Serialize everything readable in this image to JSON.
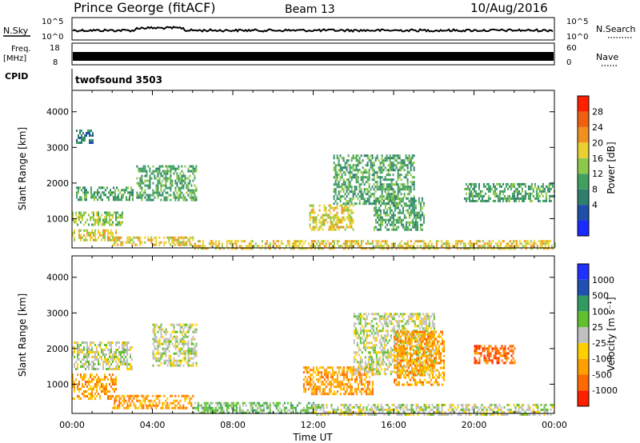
{
  "header": {
    "station": "Prince George (fitACF)",
    "beam": "Beam 13",
    "date": "10/Aug/2016"
  },
  "panels": {
    "nsky": {
      "label": "N.Sky",
      "ticks": [
        "10^5",
        "10^0"
      ],
      "right_ticks": [
        "10^5",
        "10^0"
      ],
      "right_label": "N.Search"
    },
    "freq": {
      "label_line1": "Freq.",
      "label_line2": "[MHz]",
      "ticks": [
        "18",
        "8"
      ],
      "right_ticks": [
        "60",
        "0"
      ],
      "right_label": "Nave"
    },
    "cpid": {
      "label": "CPID",
      "program": "twofsound 3503"
    }
  },
  "colors": {
    "power": [
      "#1a2bff",
      "#1f4fa8",
      "#2f7f6e",
      "#40a060",
      "#8cc84a",
      "#e8d030",
      "#f09020",
      "#f06010",
      "#ff2000"
    ],
    "velocity": [
      "#ff2000",
      "#ff6a00",
      "#ffa000",
      "#ffd000",
      "#c0c0c0",
      "#60c030",
      "#309a60",
      "#2050b0",
      "#2030ff"
    ]
  },
  "chart_data": [
    {
      "type": "heatmap",
      "title": "",
      "ylabel": "Slant Range [km]",
      "xlabel": "",
      "ylim": [
        180,
        4600
      ],
      "xlim": [
        0,
        24
      ],
      "y_ticks": [
        1000,
        2000,
        3000,
        4000
      ],
      "colorbar": {
        "label": "Power [dB]",
        "range": [
          0,
          32
        ],
        "ticks": [
          "28",
          "24",
          "20",
          "16",
          "12",
          "8",
          "4"
        ]
      },
      "bands": [
        {
          "t0": 0.0,
          "t1": 2.2,
          "r0": 380,
          "r1": 700,
          "level": 20
        },
        {
          "t0": 0.0,
          "t1": 2.5,
          "r0": 800,
          "r1": 1200,
          "level": 14
        },
        {
          "t0": 0.2,
          "t1": 3.0,
          "r0": 1500,
          "r1": 1900,
          "level": 10
        },
        {
          "t0": 0.2,
          "t1": 1.0,
          "r0": 3100,
          "r1": 3500,
          "level": 6
        },
        {
          "t0": 2.0,
          "t1": 6.0,
          "r0": 280,
          "r1": 500,
          "level": 18
        },
        {
          "t0": 3.2,
          "t1": 6.2,
          "r0": 1500,
          "r1": 2500,
          "level": 12
        },
        {
          "t0": 6.0,
          "t1": 24.0,
          "r0": 180,
          "r1": 400,
          "level": 18
        },
        {
          "t0": 11.8,
          "t1": 14.0,
          "r0": 700,
          "r1": 1400,
          "level": 20
        },
        {
          "t0": 13.0,
          "t1": 17.0,
          "r0": 1400,
          "r1": 2800,
          "level": 12
        },
        {
          "t0": 15.0,
          "t1": 17.5,
          "r0": 700,
          "r1": 1600,
          "level": 12
        },
        {
          "t0": 19.5,
          "t1": 24.0,
          "r0": 1500,
          "r1": 2000,
          "level": 12
        }
      ]
    },
    {
      "type": "heatmap",
      "title": "",
      "ylabel": "Slant Range [km]",
      "xlabel": "Time UT",
      "ylim": [
        180,
        4600
      ],
      "xlim": [
        0,
        24
      ],
      "x_ticks": [
        "00:00",
        "04:00",
        "08:00",
        "12:00",
        "16:00",
        "20:00",
        "00:00"
      ],
      "y_ticks": [
        1000,
        2000,
        3000,
        4000
      ],
      "colorbar": {
        "label": "Velocity [m s⁻¹]",
        "range": [
          -1000,
          1000
        ],
        "ticks": [
          "1000",
          "500",
          "100",
          "25",
          "-25",
          "-100",
          "-500",
          "-1000"
        ]
      },
      "bands": [
        {
          "t0": 0.0,
          "t1": 2.2,
          "r0": 600,
          "r1": 1300,
          "level": -150
        },
        {
          "t0": 0.0,
          "t1": 3.0,
          "r0": 1400,
          "r1": 2200,
          "level": 0
        },
        {
          "t0": 2.0,
          "t1": 6.0,
          "r0": 300,
          "r1": 700,
          "level": -150
        },
        {
          "t0": 4.0,
          "t1": 6.2,
          "r0": 1500,
          "r1": 2700,
          "level": 0
        },
        {
          "t0": 6.0,
          "t1": 12.0,
          "r0": 180,
          "r1": 500,
          "level": 60
        },
        {
          "t0": 12.0,
          "t1": 24.0,
          "r0": 180,
          "r1": 450,
          "level": 0
        },
        {
          "t0": 11.5,
          "t1": 15.0,
          "r0": 700,
          "r1": 1500,
          "level": -120
        },
        {
          "t0": 14.0,
          "t1": 18.0,
          "r0": 1300,
          "r1": 3000,
          "level": 0
        },
        {
          "t0": 16.0,
          "t1": 18.5,
          "r0": 1000,
          "r1": 2500,
          "level": -300
        },
        {
          "t0": 20.0,
          "t1": 22.0,
          "r0": 1600,
          "r1": 2100,
          "level": -700
        }
      ]
    }
  ]
}
